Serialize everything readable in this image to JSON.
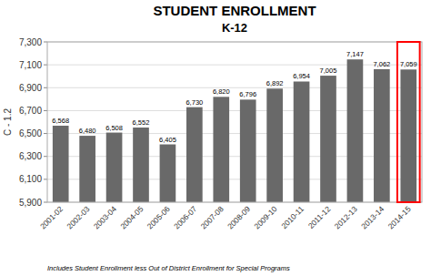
{
  "chart_data": {
    "type": "bar",
    "title": "STUDENT ENROLLMENT",
    "subtitle": "K-12",
    "y_label": "C - 1.2",
    "footnote": "Includes Student Enrollment less Out of District Enrollment for Special Programs",
    "categories": [
      "2001-02",
      "2002-03",
      "2003-04",
      "2004-05",
      "2005-06",
      "2006-07",
      "2007-08",
      "2008-09",
      "2009-10",
      "2010-11",
      "2011-12",
      "2012-13",
      "2013-14",
      "2014-15"
    ],
    "values": [
      6568,
      6480,
      6508,
      6552,
      6405,
      6730,
      6820,
      6796,
      6892,
      6954,
      7005,
      7147,
      7062,
      7059
    ],
    "value_labels": [
      "6,568",
      "6,480",
      "6,508",
      "6,552",
      "6,405",
      "6,730",
      "6,820",
      "6,796",
      "6,892",
      "6,954",
      "7,005",
      "7,147",
      "7,062",
      "7,059"
    ],
    "data_labels": true,
    "color": "#696969",
    "highlight": {
      "index": 13,
      "color": "red"
    },
    "ylim": [
      5900,
      7300
    ],
    "yticks": [
      {
        "value": 5900,
        "label": "5,900"
      },
      {
        "value": 6100,
        "label": "6,100"
      },
      {
        "value": 6300,
        "label": "6,300"
      },
      {
        "value": 6500,
        "label": "6,500"
      },
      {
        "value": 6700,
        "label": "6,700"
      },
      {
        "value": 6900,
        "label": "6,900"
      },
      {
        "value": 7100,
        "label": "7,100"
      },
      {
        "value": 7300,
        "label": "7,300"
      }
    ],
    "grid": true
  }
}
